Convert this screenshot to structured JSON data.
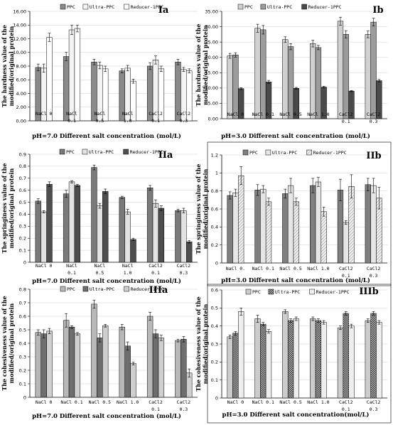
{
  "colors": {
    "ppc": "#8c8c8c",
    "ultra": "#dddddd",
    "reducer": "#5a5a5a",
    "frame": "#000000",
    "grid": "#cfcfcf"
  },
  "chart_data": [
    {
      "id": "Ia",
      "type": "bar",
      "title": "Ia",
      "ylabel": [
        "The hardness value of the",
        "modified/original protein"
      ],
      "xlabel": "pH=7.0 Different salt concentration (mol/L)",
      "ylim": [
        0,
        16
      ],
      "yticks": [
        "0.00",
        "2.00",
        "4.00",
        "6.00",
        "8.00",
        "10.00",
        "12.00",
        "14.00",
        "16.00"
      ],
      "legend": [
        "PPC",
        "Ultra-PPC",
        "Reducer-1PPC"
      ],
      "categories": [
        [
          "NaCl 0"
        ],
        [
          "NaCl",
          "0.1"
        ],
        [
          "NaCl",
          "0.5"
        ],
        [
          "NaCl",
          "1.0"
        ],
        [
          "CaCl2",
          "0.1"
        ],
        [
          "CaCl2",
          "0.3"
        ]
      ],
      "series": [
        {
          "name": "PPC",
          "values": [
            7.8,
            9.4,
            8.6,
            7.3,
            8.0,
            8.6
          ],
          "errors": [
            0.5,
            0.6,
            0.4,
            0.3,
            0.5,
            0.4
          ]
        },
        {
          "name": "Ultra-PPC",
          "values": [
            7.7,
            13.3,
            8.1,
            7.7,
            8.9,
            7.5
          ],
          "errors": [
            0.6,
            0.7,
            0.5,
            0.4,
            0.6,
            0.3
          ]
        },
        {
          "name": "Reducer-1PPC",
          "values": [
            12.2,
            13.5,
            7.6,
            5.8,
            7.6,
            7.3
          ],
          "errors": [
            0.6,
            0.5,
            0.4,
            0.3,
            0.4,
            0.3
          ]
        }
      ]
    },
    {
      "id": "Ib",
      "type": "bar",
      "title": "Ib",
      "ylabel": [
        "The hardness value of the",
        "modified/original protein"
      ],
      "xlabel": "pH=3.0 Different salt concentration (mol/L)",
      "ylim": [
        0,
        35
      ],
      "yticks": [
        "0.00",
        "5.00",
        "10.00",
        "15.00",
        "20.00",
        "25.00",
        "30.00",
        "35.00"
      ],
      "legend": [
        "PPC",
        "Ultra-PPC",
        "Reducer-1PPC"
      ],
      "categories": [
        [
          "NaCl 0"
        ],
        [
          "NaCl 0.1"
        ],
        [
          "NaCl 0.5"
        ],
        [
          "NaCl 1.0"
        ],
        [
          "CaCl2",
          "0.1"
        ],
        [
          "CaCl2",
          "0.3"
        ]
      ],
      "series": [
        {
          "name": "PPC",
          "values": [
            20.5,
            29.5,
            25.8,
            24.5,
            31.8,
            27.5
          ],
          "errors": [
            0.8,
            1.3,
            0.9,
            1.1,
            1.3,
            1.1
          ]
        },
        {
          "name": "Ultra-PPC",
          "values": [
            20.8,
            29.0,
            23.5,
            23.2,
            27.5,
            31.5
          ],
          "errors": [
            0.7,
            1.4,
            1.0,
            0.7,
            1.2,
            1.3
          ]
        },
        {
          "name": "Reducer-1PPC",
          "values": [
            9.8,
            12.0,
            9.9,
            10.3,
            9.0,
            12.4
          ],
          "errors": [
            0.3,
            0.5,
            0.3,
            0.3,
            0.2,
            0.4
          ]
        }
      ]
    },
    {
      "id": "IIa",
      "type": "bar",
      "title": "IIa",
      "ylabel": [
        "The springiness value of the",
        "modified/original protein"
      ],
      "xlabel": "pH=7.0 Different salt concentration (mol/L)",
      "ylim": [
        0,
        0.9
      ],
      "yticks": [
        "0",
        "0.1",
        "0.2",
        "0.3",
        "0.4",
        "0.5",
        "0.6",
        "0.7",
        "0.8",
        "0.9"
      ],
      "legend": [
        "PPC",
        "Ultra-PPC",
        "Reducer-1PPC"
      ],
      "categories": [
        [
          "NaCl 0"
        ],
        [
          "NaCl",
          "0.1"
        ],
        [
          "NaCl",
          "0.5"
        ],
        [
          "NaCl",
          "1.0"
        ],
        [
          "CaCl2",
          "0.1"
        ],
        [
          "CaCl2",
          "0.3"
        ]
      ],
      "series": [
        {
          "name": "PPC",
          "values": [
            0.51,
            0.57,
            0.79,
            0.54,
            0.62,
            0.43
          ],
          "errors": [
            0.02,
            0.03,
            0.02,
            0.01,
            0.02,
            0.01
          ]
        },
        {
          "name": "Ultra-PPC",
          "values": [
            0.42,
            0.67,
            0.47,
            0.42,
            0.49,
            0.43
          ],
          "errors": [
            0.01,
            0.01,
            0.02,
            0.02,
            0.03,
            0.02
          ]
        },
        {
          "name": "Reducer-1PPC",
          "values": [
            0.65,
            0.64,
            0.59,
            0.19,
            0.45,
            0.17
          ],
          "errors": [
            0.02,
            0.01,
            0.02,
            0.01,
            0.02,
            0.01
          ]
        }
      ]
    },
    {
      "id": "IIb",
      "type": "bar",
      "title": "IIb",
      "ylabel": [
        "The springiness value of the",
        "modified/original protein"
      ],
      "xlabel": "pH=3.0 Different salt concentration (mol/L)",
      "ylim": [
        0,
        1.2
      ],
      "yticks": [
        "0",
        "0.2",
        "0.4",
        "0.6",
        "0.8",
        "1",
        "1.2"
      ],
      "legend": [
        "PPC",
        "Ultra-PPC",
        "Reducer-1PPC"
      ],
      "categories": [
        [
          "NaCl 0."
        ],
        [
          "NaCl 0.1"
        ],
        [
          "NaCl 0.5"
        ],
        [
          "NaCl 1.0"
        ],
        [
          "CaCl2",
          "0.1"
        ],
        [
          "CaCl2",
          "0.3"
        ]
      ],
      "series": [
        {
          "name": "PPC",
          "values": [
            0.75,
            0.81,
            0.77,
            0.86,
            0.81,
            0.87
          ],
          "errors": [
            0.04,
            0.06,
            0.05,
            0.08,
            0.12,
            0.07
          ]
        },
        {
          "name": "Ultra-PPC",
          "values": [
            0.78,
            0.82,
            0.86,
            0.9,
            0.45,
            0.86
          ],
          "errors": [
            0.04,
            0.04,
            0.08,
            0.05,
            0.02,
            0.08
          ]
        },
        {
          "name": "Reducer-1PPC",
          "values": [
            0.97,
            0.68,
            0.68,
            0.57,
            0.85,
            0.72
          ],
          "errors": [
            0.1,
            0.04,
            0.04,
            0.05,
            0.13,
            0.12
          ]
        }
      ]
    },
    {
      "id": "IIIa",
      "type": "bar",
      "title": "IIIa",
      "ylabel": [
        "The cohesiveness value of the",
        "modified/original protein"
      ],
      "xlabel": "pH=7.0 Different salt concentration (mol/L)",
      "ylim": [
        0,
        0.8
      ],
      "yticks": [
        "0",
        "0.1",
        "0.2",
        "0.3",
        "0.4",
        "0.5",
        "0.6",
        "0.7",
        "0.8"
      ],
      "legend": [
        "PPC",
        "Ultra-PPC",
        "Reducer-1PPC"
      ],
      "categories": [
        [
          "NaCl 0"
        ],
        [
          "NaCl 0.1"
        ],
        [
          "NaCl 0.5"
        ],
        [
          "NaCl 1.0"
        ],
        [
          "CaCl2",
          "0.1"
        ],
        [
          "CaCl2",
          "0.3"
        ]
      ],
      "series": [
        {
          "name": "PPC",
          "values": [
            0.48,
            0.57,
            0.69,
            0.52,
            0.6,
            0.42
          ],
          "errors": [
            0.02,
            0.05,
            0.03,
            0.02,
            0.03,
            0.01
          ]
        },
        {
          "name": "Ultra-PPC",
          "values": [
            0.47,
            0.52,
            0.44,
            0.38,
            0.47,
            0.43
          ],
          "errors": [
            0.03,
            0.01,
            0.03,
            0.03,
            0.03,
            0.02
          ]
        },
        {
          "name": "Reducer-1PPC",
          "values": [
            0.49,
            0.47,
            0.53,
            0.25,
            0.44,
            0.18
          ],
          "errors": [
            0.02,
            0.01,
            0.01,
            0.01,
            0.02,
            0.03
          ]
        }
      ]
    },
    {
      "id": "IIIb",
      "type": "bar",
      "title": "IIIb",
      "ylabel": [
        "The cohesiveness value of the",
        "modified/original protein"
      ],
      "xlabel": "pH=3.0 Different salt concentration(mol/L)",
      "ylim": [
        0,
        0.6
      ],
      "yticks": [
        "0",
        "0.1",
        "0.2",
        "0.3",
        "0.4",
        "0.5",
        "0.6"
      ],
      "legend": [
        "PPC",
        "Ultra-PPC",
        "Reducer-1PPC"
      ],
      "categories": [
        [
          "NaCl 0"
        ],
        [
          "NaCl 0.1"
        ],
        [
          "NaCl 0.5"
        ],
        [
          "NaCl 1.0"
        ],
        [
          "CaCl2",
          "0.1"
        ],
        [
          "CaCl2",
          "0.3"
        ]
      ],
      "series": [
        {
          "name": "PPC",
          "values": [
            0.34,
            0.44,
            0.48,
            0.44,
            0.39,
            0.43
          ],
          "errors": [
            0.01,
            0.02,
            0.01,
            0.01,
            0.01,
            0.01
          ]
        },
        {
          "name": "Ultra-PPC",
          "values": [
            0.36,
            0.41,
            0.43,
            0.43,
            0.47,
            0.47
          ],
          "errors": [
            0.01,
            0.01,
            0.01,
            0.01,
            0.01,
            0.01
          ]
        },
        {
          "name": "Reducer-1PPC",
          "values": [
            0.48,
            0.37,
            0.44,
            0.42,
            0.4,
            0.42
          ],
          "errors": [
            0.02,
            0.01,
            0.01,
            0.01,
            0.01,
            0.01
          ]
        }
      ]
    }
  ]
}
